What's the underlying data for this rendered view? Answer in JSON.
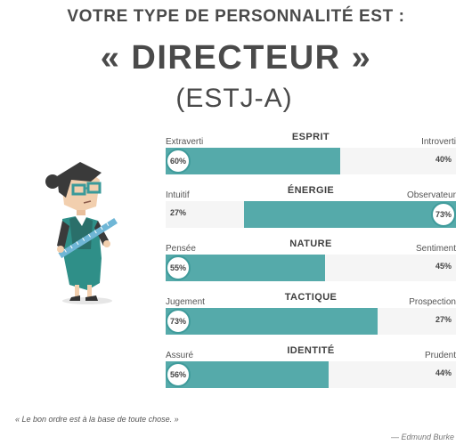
{
  "header": {
    "pretitle": "VOTRE TYPE DE PERSONNALITÉ EST :",
    "type_name": "« DIRECTEUR »",
    "type_code": "(ESTJ-A)"
  },
  "colors": {
    "bar_fill": "#55aaaa",
    "bar_track": "#f5f5f5",
    "circle_border": "#3f9b9b"
  },
  "traits": [
    {
      "category": "ESPRIT",
      "left_label": "Extraverti",
      "right_label": "Introverti",
      "left_pct": "60%",
      "right_pct": "40%",
      "dominant": "left",
      "value": 0.6
    },
    {
      "category": "ÉNERGIE",
      "left_label": "Intuitif",
      "right_label": "Observateur",
      "left_pct": "27%",
      "right_pct": "73%",
      "dominant": "right",
      "value": 0.73
    },
    {
      "category": "NATURE",
      "left_label": "Pensée",
      "right_label": "Sentiment",
      "left_pct": "55%",
      "right_pct": "45%",
      "dominant": "left",
      "value": 0.55
    },
    {
      "category": "TACTIQUE",
      "left_label": "Jugement",
      "right_label": "Prospection",
      "left_pct": "73%",
      "right_pct": "27%",
      "dominant": "left",
      "value": 0.73
    },
    {
      "category": "IDENTITÉ",
      "left_label": "Assuré",
      "right_label": "Prudent",
      "left_pct": "56%",
      "right_pct": "44%",
      "dominant": "left",
      "value": 0.56
    }
  ],
  "quote": {
    "text": "« Le bon ordre est à la base de toute chose. »",
    "author": "— Edmund Burke"
  },
  "illustration": "director-character-illustration"
}
